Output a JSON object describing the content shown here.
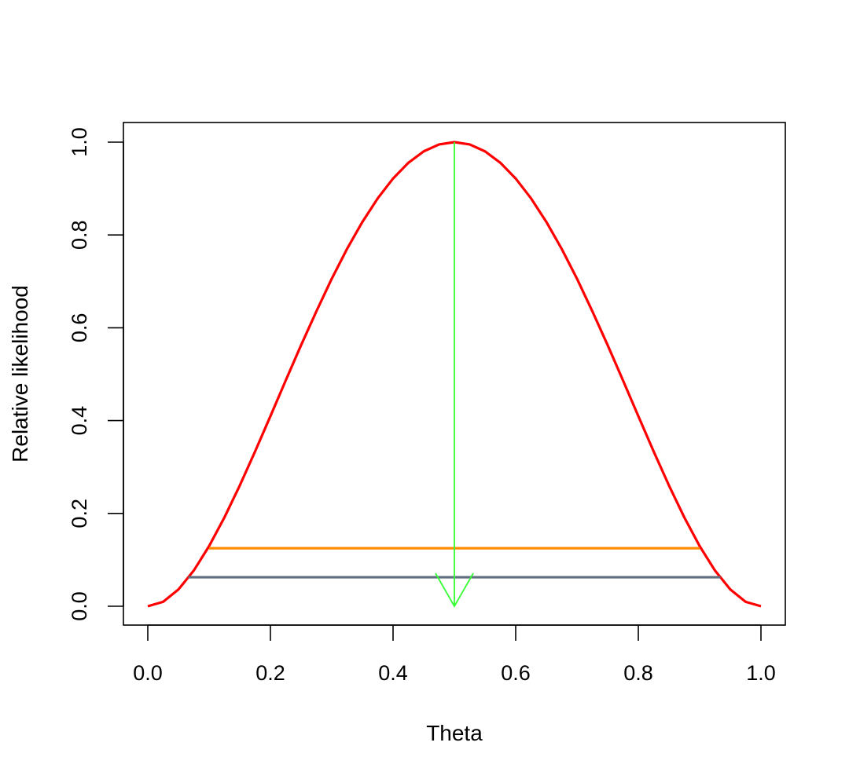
{
  "chart_data": {
    "type": "line",
    "title": "",
    "xlabel": "Theta",
    "ylabel": "Relative likelihood",
    "xlim": [
      0,
      1
    ],
    "ylim": [
      0,
      1
    ],
    "x_ticks": [
      "0.0",
      "0.2",
      "0.4",
      "0.6",
      "0.8",
      "1.0"
    ],
    "y_ticks": [
      "0.0",
      "0.2",
      "0.4",
      "0.6",
      "0.8",
      "1.0"
    ],
    "grid": false,
    "legend": "none",
    "series": [
      {
        "type": "curve",
        "color": "#ff0000",
        "x": [
          0,
          0.025,
          0.05,
          0.075,
          0.1,
          0.125,
          0.15,
          0.175,
          0.2,
          0.225,
          0.25,
          0.275,
          0.3,
          0.325,
          0.35,
          0.375,
          0.4,
          0.425,
          0.45,
          0.475,
          0.5,
          0.525,
          0.55,
          0.575,
          0.6,
          0.625,
          0.65,
          0.675,
          0.7,
          0.725,
          0.75,
          0.775,
          0.8,
          0.825,
          0.85,
          0.875,
          0.9,
          0.925,
          0.95,
          0.975,
          1
        ],
        "y": [
          0,
          0.0095,
          0.0361,
          0.0769,
          0.1296,
          0.1914,
          0.2601,
          0.3335,
          0.4096,
          0.4866,
          0.5625,
          0.6356,
          0.7056,
          0.7701,
          0.8281,
          0.8789,
          0.9216,
          0.9555,
          0.9801,
          0.995,
          1,
          0.995,
          0.9801,
          0.9555,
          0.9216,
          0.8789,
          0.8281,
          0.7701,
          0.7056,
          0.6356,
          0.5625,
          0.4866,
          0.4096,
          0.3335,
          0.2601,
          0.1914,
          0.1296,
          0.0769,
          0.0361,
          0.0095,
          0
        ]
      },
      {
        "type": "hline",
        "color": "#ff8c00",
        "y": 0.125,
        "x": [
          0.1,
          0.9
        ]
      },
      {
        "type": "hline",
        "color": "#5f6f80",
        "y": 0.0625,
        "x": [
          0.066,
          0.934
        ]
      },
      {
        "type": "arrow",
        "color": "#33ff33",
        "x": 0.5,
        "y_from": 1,
        "y_to": 0
      }
    ]
  }
}
